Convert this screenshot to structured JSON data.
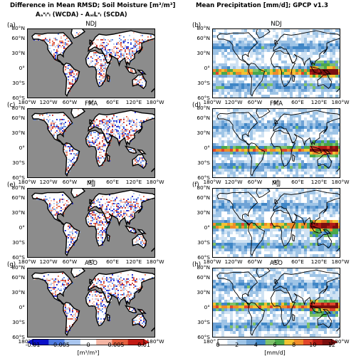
{
  "left_title_line1": "Difference in Mean RMSD; Soil Moisture [m³/m³]",
  "left_title_line2": "Aₐˣₗˣₗ (WCDA) - AₐₗLˣₗ (SCDA)",
  "right_title": "Mean Precipitation [mm/d]; GPCP v1.3",
  "panels": [
    {
      "label": "(a)",
      "season": "NDJ"
    },
    {
      "label": "(b)",
      "season": "NDJ"
    },
    {
      "label": "(c)",
      "season": "FMA"
    },
    {
      "label": "(d)",
      "season": "FMA"
    },
    {
      "label": "(e)",
      "season": "MJJ"
    },
    {
      "label": "(f)",
      "season": "MJJ"
    },
    {
      "label": "(g)",
      "season": "ASO"
    },
    {
      "label": "(h)",
      "season": "ASO"
    }
  ],
  "lat_ticks": [
    "80°N",
    "60°N",
    "30°N",
    "0°",
    "30°S",
    "60°S"
  ],
  "lon_ticks": [
    "180°W",
    "120°W",
    "60°W",
    "0°",
    "60°E",
    "120°E",
    "180°W"
  ],
  "left_colorbar": {
    "ticks": [
      "-0.01",
      "-0.005",
      "0",
      "0.005",
      "0.01"
    ],
    "unit": "[m³/m³]",
    "colors": [
      "#0a10c8",
      "#4f7be0",
      "#a9c6ef",
      "#ffffff",
      "#f4b5a4",
      "#e4603f",
      "#c21a14"
    ]
  },
  "right_colorbar": {
    "ticks": [
      "0",
      "2",
      "4",
      "6",
      "8",
      "10",
      "12"
    ],
    "unit": "[mm/d]",
    "colors": [
      "#ffffff",
      "#cfe2f3",
      "#9ec4e6",
      "#6fa3d6",
      "#3f86c6",
      "#7ec26a",
      "#4aa84a",
      "#f2c232",
      "#ef8c2a",
      "#e0452a",
      "#b01a14",
      "#7a0f0f"
    ]
  }
}
